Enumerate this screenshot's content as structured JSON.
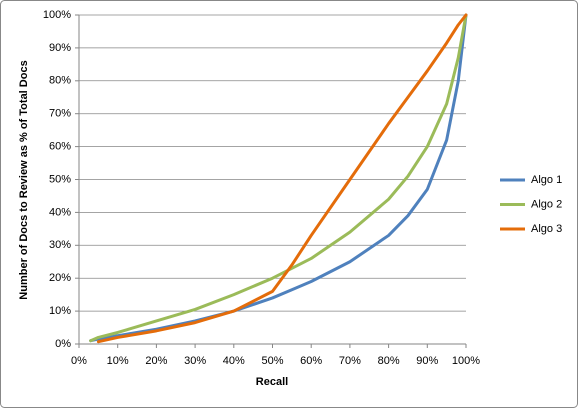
{
  "chart_data": {
    "type": "line",
    "x_label": "Recall",
    "y_label": "Number of Docs to Review as % of Total Docs",
    "x": [
      3,
      5,
      10,
      20,
      30,
      40,
      50,
      55,
      60,
      70,
      80,
      85,
      90,
      95,
      98,
      100
    ],
    "series": [
      {
        "name": "Algo 1",
        "color": "#4f81bd",
        "values": [
          1,
          1.5,
          2.5,
          4.5,
          7,
          10,
          14,
          16.5,
          19,
          25,
          33,
          39,
          47,
          62,
          80,
          100
        ]
      },
      {
        "name": "Algo 2",
        "color": "#9bbb59",
        "values": [
          1,
          2,
          3.5,
          7,
          10.5,
          15,
          20,
          23,
          26,
          34,
          44,
          51,
          60,
          73,
          87,
          100
        ]
      },
      {
        "name": "Algo 3",
        "color": "#e46c0a",
        "values": [
          null,
          0.7,
          2,
          4,
          6.5,
          10,
          16,
          24,
          33,
          50,
          67,
          75,
          83,
          91.5,
          97,
          100
        ]
      }
    ],
    "xlim": [
      0,
      100
    ],
    "ylim": [
      0,
      100
    ],
    "xticks": [
      {
        "value": 0,
        "label": "0%"
      },
      {
        "value": 10,
        "label": "10%"
      },
      {
        "value": 20,
        "label": "20%"
      },
      {
        "value": 30,
        "label": "30%"
      },
      {
        "value": 40,
        "label": "40%"
      },
      {
        "value": 50,
        "label": "50%"
      },
      {
        "value": 60,
        "label": "60%"
      },
      {
        "value": 70,
        "label": "70%"
      },
      {
        "value": 80,
        "label": "80%"
      },
      {
        "value": 90,
        "label": "90%"
      },
      {
        "value": 100,
        "label": "100%"
      }
    ],
    "yticks": [
      {
        "value": 0,
        "label": "0%"
      },
      {
        "value": 10,
        "label": "10%"
      },
      {
        "value": 20,
        "label": "20%"
      },
      {
        "value": 30,
        "label": "30%"
      },
      {
        "value": 40,
        "label": "40%"
      },
      {
        "value": 50,
        "label": "50%"
      },
      {
        "value": 60,
        "label": "60%"
      },
      {
        "value": 70,
        "label": "70%"
      },
      {
        "value": 80,
        "label": "80%"
      },
      {
        "value": 90,
        "label": "90%"
      },
      {
        "value": 100,
        "label": "100%"
      }
    ],
    "grid": true,
    "legend": "right"
  }
}
